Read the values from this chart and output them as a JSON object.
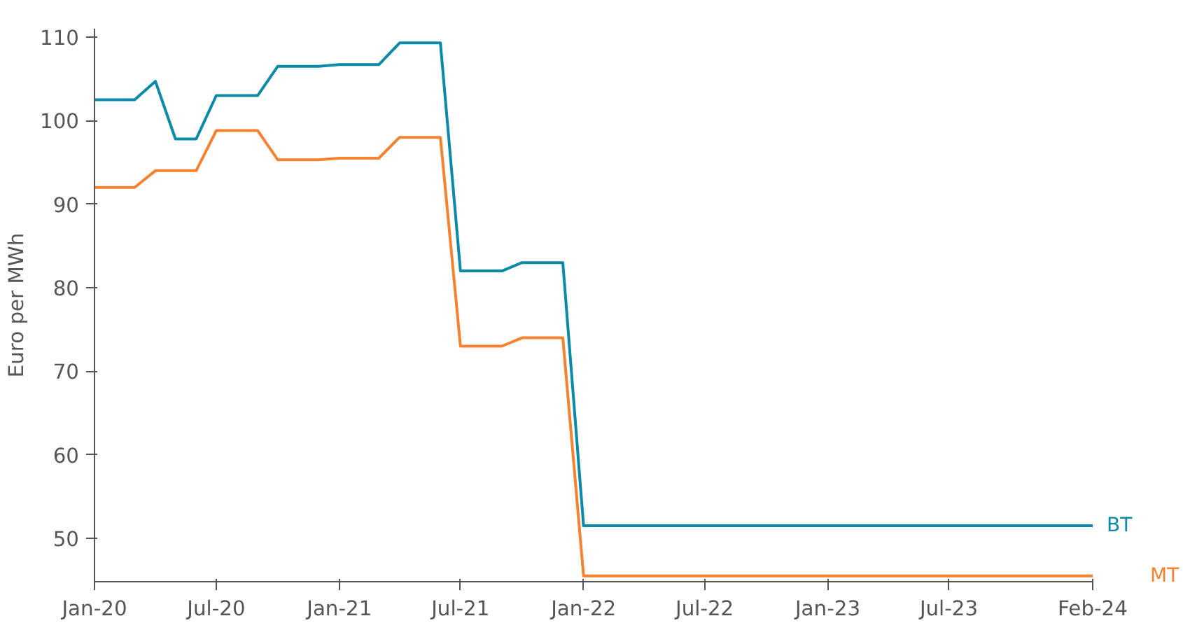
{
  "chart_data": {
    "type": "line",
    "ylabel": "Euro per MWh",
    "xlim": [
      "2020-01",
      "2024-02"
    ],
    "xticks": [
      {
        "value": "2020-01",
        "label": "Jan-20"
      },
      {
        "value": "2020-07",
        "label": "Jul-20"
      },
      {
        "value": "2021-01",
        "label": "Jan-21"
      },
      {
        "value": "2021-07",
        "label": "Jul-21"
      },
      {
        "value": "2022-01",
        "label": "Jan-22"
      },
      {
        "value": "2022-07",
        "label": "Jul-22"
      },
      {
        "value": "2023-01",
        "label": "Jan-23"
      },
      {
        "value": "2023-07",
        "label": "Jul-23"
      },
      {
        "value": "2024-02",
        "label": "Feb-24"
      }
    ],
    "ylim": [
      44.8,
      111
    ],
    "yticks": [
      50,
      60,
      70,
      80,
      90,
      100,
      110
    ],
    "grid": false,
    "line_style": "solid",
    "series": [
      {
        "name": "BT",
        "color": "#0a8aa8",
        "x": [
          "2020-01",
          "2020-03",
          "2020-04",
          "2020-05",
          "2020-06",
          "2020-07",
          "2020-09",
          "2020-10",
          "2020-12",
          "2021-01",
          "2021-03",
          "2021-04",
          "2021-06",
          "2021-07",
          "2021-09",
          "2021-10",
          "2021-12",
          "2022-01",
          "2024-02"
        ],
        "values": [
          102.5,
          102.5,
          104.7,
          97.8,
          97.8,
          103,
          103,
          106.5,
          106.5,
          106.7,
          106.7,
          109.3,
          109.3,
          82,
          82,
          83,
          83,
          51.5,
          51.5
        ]
      },
      {
        "name": "MT",
        "color": "#f58231",
        "x": [
          "2020-01",
          "2020-03",
          "2020-04",
          "2020-06",
          "2020-07",
          "2020-09",
          "2020-10",
          "2020-12",
          "2021-01",
          "2021-03",
          "2021-04",
          "2021-06",
          "2021-07",
          "2021-09",
          "2021-10",
          "2021-12",
          "2022-01",
          "2024-02"
        ],
        "values": [
          92,
          92,
          94,
          94,
          98.8,
          98.8,
          95.3,
          95.3,
          95.5,
          95.5,
          98,
          98,
          73,
          73,
          74,
          74,
          45.5,
          45.5
        ]
      }
    ]
  }
}
